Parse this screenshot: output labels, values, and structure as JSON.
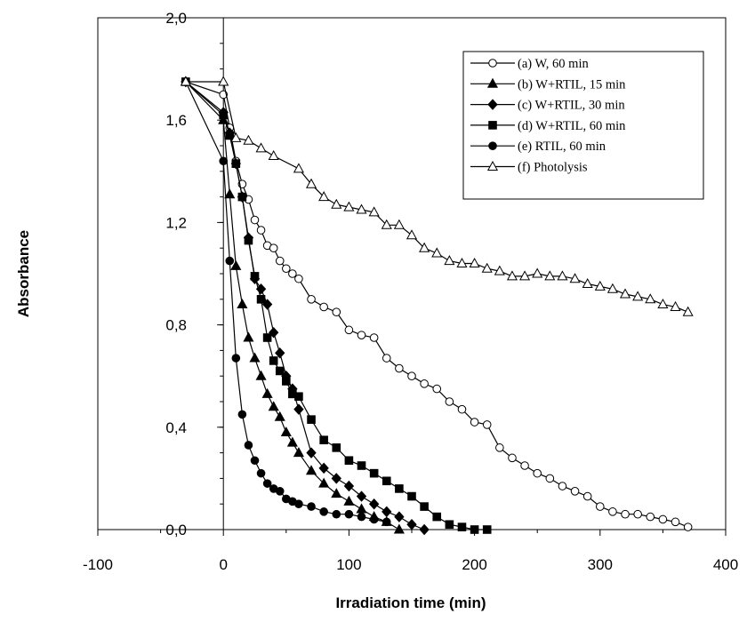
{
  "chart_data": {
    "type": "line",
    "title": "",
    "xlabel": "Irradiation time (min)",
    "ylabel": "Absorbance",
    "xlim": [
      -100,
      400
    ],
    "ylim": [
      0,
      2
    ],
    "x_ticks": [
      -100,
      0,
      100,
      200,
      300,
      400
    ],
    "x_tick_labels": [
      "-100",
      "0",
      "100",
      "200",
      "300",
      "400"
    ],
    "y_ticks": [
      0,
      0.4,
      0.8,
      1.2,
      1.6,
      2.0
    ],
    "y_tick_labels": [
      "0,0",
      "0,4",
      "0,8",
      "1,2",
      "1,6",
      "2,0"
    ],
    "grid": false,
    "legend_position": "top-right",
    "series": [
      {
        "name": "(a) W, 60 min",
        "marker": "circle-open",
        "x": [
          -30,
          0,
          5,
          10,
          15,
          20,
          25,
          30,
          35,
          40,
          45,
          50,
          55,
          60,
          70,
          80,
          90,
          100,
          110,
          120,
          130,
          140,
          150,
          160,
          170,
          180,
          190,
          200,
          210,
          220,
          230,
          240,
          250,
          260,
          270,
          280,
          290,
          300,
          310,
          320,
          330,
          340,
          350,
          360,
          370
        ],
        "y": [
          1.75,
          1.7,
          1.57,
          1.44,
          1.35,
          1.29,
          1.21,
          1.17,
          1.11,
          1.1,
          1.05,
          1.02,
          1.0,
          0.98,
          0.9,
          0.87,
          0.85,
          0.78,
          0.76,
          0.75,
          0.67,
          0.63,
          0.6,
          0.57,
          0.55,
          0.5,
          0.47,
          0.42,
          0.41,
          0.32,
          0.28,
          0.25,
          0.22,
          0.2,
          0.17,
          0.15,
          0.13,
          0.09,
          0.07,
          0.06,
          0.06,
          0.05,
          0.04,
          0.03,
          0.01
        ]
      },
      {
        "name": "(b) W+RTIL, 15 min",
        "marker": "triangle-filled",
        "x": [
          -30,
          0,
          5,
          10,
          15,
          20,
          25,
          30,
          35,
          40,
          45,
          50,
          55,
          60,
          70,
          80,
          90,
          100,
          110,
          120,
          130,
          140
        ],
        "y": [
          1.75,
          1.6,
          1.31,
          1.03,
          0.88,
          0.75,
          0.67,
          0.6,
          0.53,
          0.48,
          0.44,
          0.38,
          0.34,
          0.3,
          0.23,
          0.18,
          0.14,
          0.11,
          0.08,
          0.05,
          0.03,
          0.0
        ]
      },
      {
        "name": "(c) W+RTIL, 30 min",
        "marker": "diamond-filled",
        "x": [
          -30,
          0,
          5,
          10,
          15,
          20,
          25,
          30,
          35,
          40,
          45,
          50,
          55,
          60,
          70,
          80,
          90,
          100,
          110,
          120,
          130,
          140,
          150,
          160
        ],
        "y": [
          1.75,
          1.63,
          1.55,
          1.43,
          1.3,
          1.14,
          0.98,
          0.94,
          0.88,
          0.77,
          0.69,
          0.6,
          0.55,
          0.47,
          0.3,
          0.24,
          0.2,
          0.17,
          0.13,
          0.1,
          0.07,
          0.05,
          0.02,
          0.0
        ]
      },
      {
        "name": "(d) W+RTIL, 60 min",
        "marker": "square-filled",
        "x": [
          -30,
          0,
          5,
          10,
          15,
          20,
          25,
          30,
          35,
          40,
          45,
          50,
          55,
          60,
          70,
          80,
          90,
          100,
          110,
          120,
          130,
          140,
          150,
          160,
          170,
          180,
          190,
          200,
          210
        ],
        "y": [
          1.75,
          1.62,
          1.54,
          1.43,
          1.3,
          1.13,
          0.99,
          0.9,
          0.75,
          0.66,
          0.62,
          0.58,
          0.53,
          0.52,
          0.43,
          0.35,
          0.32,
          0.27,
          0.25,
          0.22,
          0.19,
          0.16,
          0.13,
          0.09,
          0.05,
          0.02,
          0.01,
          0.0,
          0.0
        ]
      },
      {
        "name": "(e) RTIL, 60 min",
        "marker": "circle-filled",
        "x": [
          -30,
          0,
          5,
          10,
          15,
          20,
          25,
          30,
          35,
          40,
          45,
          50,
          55,
          60,
          70,
          80,
          90,
          100,
          110,
          120,
          130
        ],
        "y": [
          1.75,
          1.44,
          1.05,
          0.67,
          0.45,
          0.33,
          0.27,
          0.22,
          0.18,
          0.16,
          0.15,
          0.12,
          0.11,
          0.1,
          0.09,
          0.07,
          0.06,
          0.06,
          0.05,
          0.04,
          0.03
        ]
      },
      {
        "name": "(f) Photolysis",
        "marker": "triangle-open",
        "x": [
          -30,
          0,
          10,
          20,
          30,
          40,
          60,
          70,
          80,
          90,
          100,
          110,
          120,
          130,
          140,
          150,
          160,
          170,
          180,
          190,
          200,
          210,
          220,
          230,
          240,
          250,
          260,
          270,
          280,
          290,
          300,
          310,
          320,
          330,
          340,
          350,
          360,
          370
        ],
        "y": [
          1.75,
          1.75,
          1.53,
          1.52,
          1.49,
          1.46,
          1.41,
          1.35,
          1.3,
          1.27,
          1.26,
          1.25,
          1.24,
          1.19,
          1.19,
          1.15,
          1.1,
          1.08,
          1.05,
          1.04,
          1.04,
          1.02,
          1.01,
          0.99,
          0.99,
          1.0,
          0.99,
          0.99,
          0.98,
          0.96,
          0.95,
          0.94,
          0.92,
          0.91,
          0.9,
          0.88,
          0.87,
          0.85
        ]
      }
    ]
  }
}
